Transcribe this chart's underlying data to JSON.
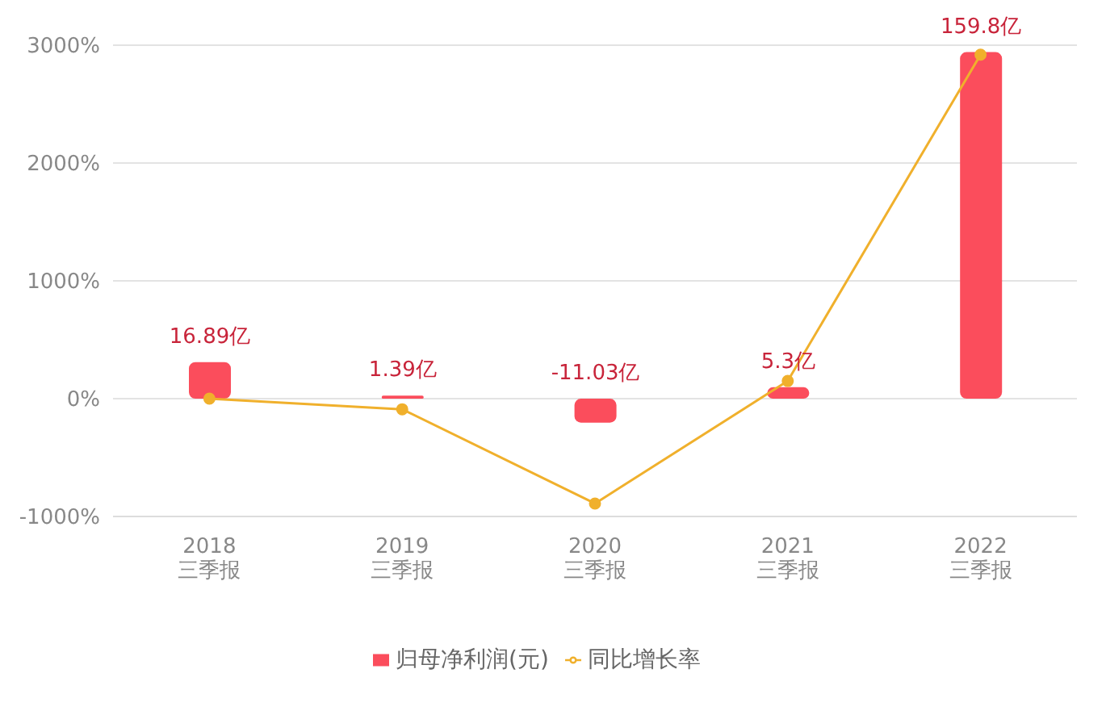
{
  "chart_data": {
    "type": "bar",
    "categories": [
      "2018\n三季报",
      "2019\n三季报",
      "2020\n三季报",
      "2021\n三季报",
      "2022\n三季报"
    ],
    "series": [
      {
        "name": "归母净利润(元)",
        "axis": "y2",
        "color": "#fb4d5c",
        "values": [
          16.89,
          1.39,
          -11.03,
          5.3,
          159.8
        ],
        "value_labels": [
          "16.89亿",
          "1.39亿",
          "-11.03亿",
          "5.3亿",
          "159.8亿"
        ]
      },
      {
        "name": "同比增长率",
        "type": "line",
        "color": "#f0b02c",
        "values": [
          0,
          -90,
          -890,
          150,
          2920
        ]
      }
    ],
    "ylim": [
      -1000,
      3000
    ],
    "yticks": [
      {
        "value": -1000,
        "label": "-1000%"
      },
      {
        "value": 0,
        "label": "0%"
      },
      {
        "value": 1000,
        "label": "1000%"
      },
      {
        "value": 2000,
        "label": "2000%"
      },
      {
        "value": 3000,
        "label": "3000%"
      }
    ],
    "y2lim": [
      -54.3,
      163
    ],
    "grid": "y",
    "legend": "bottom",
    "marker": "circle",
    "line_style": "solid"
  }
}
